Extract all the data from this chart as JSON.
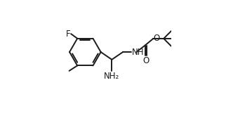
{
  "bg_color": "#ffffff",
  "line_color": "#1a1a1a",
  "text_color": "#1a1a1a",
  "line_width": 1.4,
  "font_size": 8.5,
  "figsize": [
    3.22,
    1.68
  ],
  "dpi": 100,
  "xlim": [
    0.0,
    1.0
  ],
  "ylim": [
    0.0,
    1.0
  ]
}
